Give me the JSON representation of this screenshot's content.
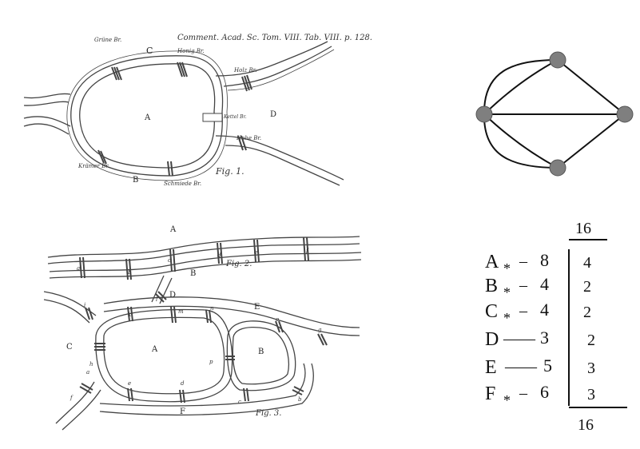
{
  "fig1": {
    "caption": "Comment. Acad. Sc. Tom. VIII. Tab. VIII. p. 128.",
    "fig_label": "Fig. 1.",
    "regions": {
      "a": "A",
      "b": "B",
      "c": "C",
      "d": "D"
    },
    "bridge_labels": [
      "Grüne Br.",
      "Honig Br.",
      "Holz Br.",
      "Krämer Br.",
      "Schmiede Br.",
      "Kettel Br.",
      "Hohe Br."
    ]
  },
  "fig2": {
    "fig_label": "Fig. 2.",
    "region": "A",
    "bridge_letters": [
      "a",
      "b",
      "c",
      "d",
      "e",
      "f"
    ]
  },
  "fig3": {
    "fig_label": "Fig. 3.",
    "regions": {
      "a": "A",
      "b": "B",
      "c": "C",
      "d": "D",
      "e": "E",
      "f": "F"
    },
    "bridge_letters": [
      "a",
      "b",
      "c",
      "d",
      "e",
      "f",
      "g",
      "h",
      "i",
      "k",
      "l",
      "m",
      "n",
      "o",
      "p"
    ]
  },
  "graph": {
    "nodes": 4,
    "edges": 7
  },
  "degree_table": {
    "total_header": "16",
    "rows": [
      {
        "region": "A",
        "marker": "*",
        "dash": "–",
        "count": "8",
        "half": "4"
      },
      {
        "region": "B",
        "marker": "*",
        "dash": "–",
        "count": "4",
        "half": "2"
      },
      {
        "region": "C",
        "marker": "*",
        "dash": "–",
        "count": "4",
        "half": "2"
      },
      {
        "region": "D",
        "marker": "",
        "dash": "——",
        "count": "3",
        "half": "2"
      },
      {
        "region": "E",
        "marker": "",
        "dash": "——",
        "count": "5",
        "half": "3"
      },
      {
        "region": "F",
        "marker": "*",
        "dash": "–",
        "count": "6",
        "half": "3"
      }
    ],
    "total_footer": "16"
  }
}
